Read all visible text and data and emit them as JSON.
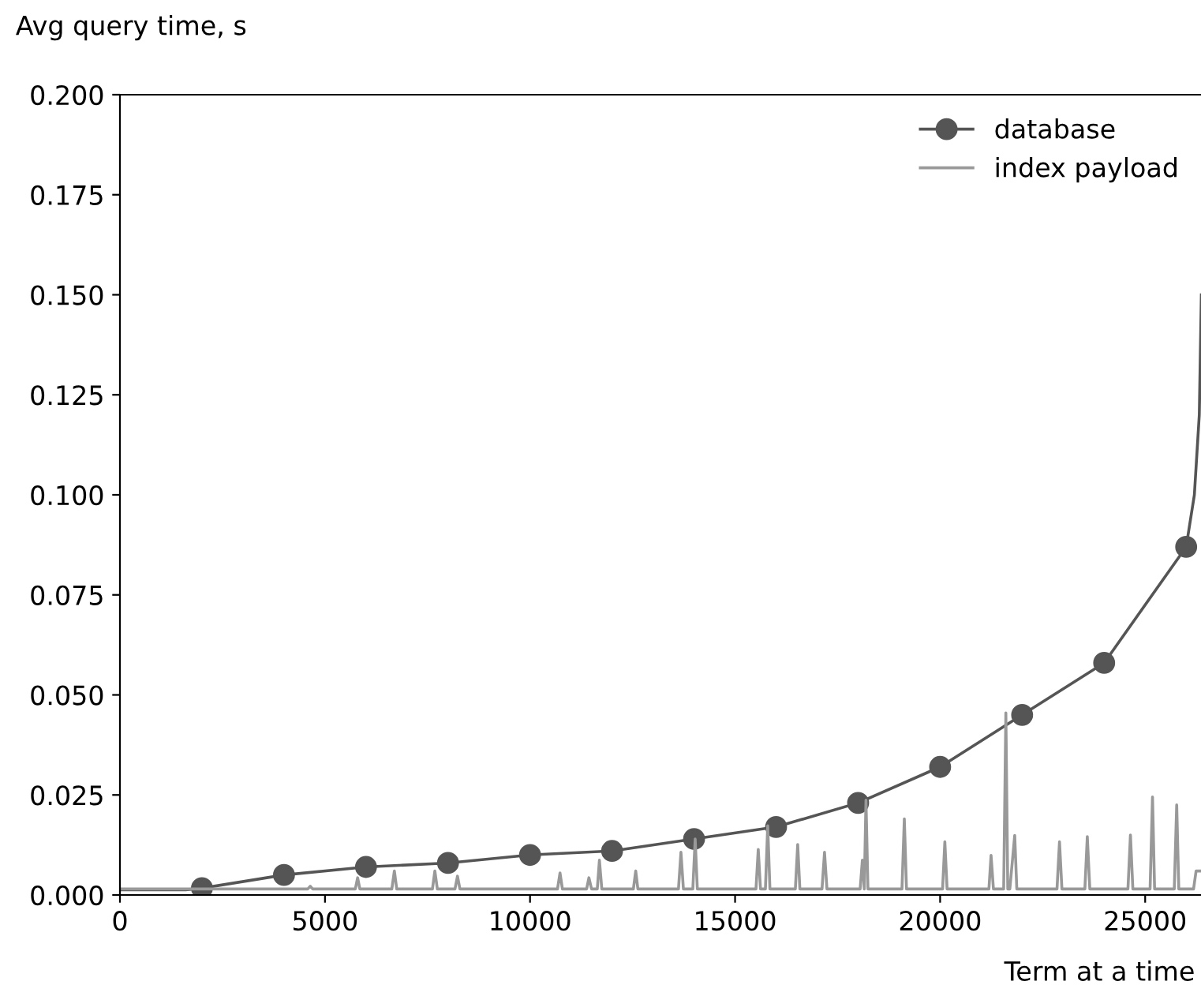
{
  "chart_data": {
    "type": "line",
    "xlabel": "Term at a time",
    "ylabel": "Avg query time, s",
    "xlim": [
      0,
      26400
    ],
    "xticks": [
      0,
      5000,
      10000,
      15000,
      20000,
      25000
    ],
    "ylim": [
      0,
      0.2
    ],
    "yticks": [
      {
        "value": 0,
        "label": "0.000"
      },
      {
        "value": 0.025,
        "label": "0.025"
      },
      {
        "value": 0.05,
        "label": "0.050"
      },
      {
        "value": 0.075,
        "label": "0.075"
      },
      {
        "value": 0.1,
        "label": "0.100"
      },
      {
        "value": 0.125,
        "label": "0.125"
      },
      {
        "value": 0.15,
        "label": "0.150"
      },
      {
        "value": 0.175,
        "label": "0.175"
      },
      {
        "value": 0.2,
        "label": "0.200"
      }
    ],
    "legend": "top right",
    "grid": false,
    "series": [
      {
        "name": "database",
        "color": "#555555",
        "marker": "circle",
        "x": [
          2000,
          4000,
          6000,
          8000,
          10000,
          12000,
          14000,
          16000,
          18000,
          20000,
          22000,
          24000,
          26000
        ],
        "values": [
          0.0017,
          0.005,
          0.007,
          0.008,
          0.01,
          0.011,
          0.014,
          0.017,
          0.023,
          0.032,
          0.045,
          0.058,
          0.087
        ]
      },
      {
        "color": "#555555",
        "marker": "none",
        "x": [
          0,
          1600,
          2000
        ],
        "values": [
          0.0013,
          0.0013,
          0.0017
        ]
      },
      {
        "color": "#555555",
        "marker": "none",
        "x": [
          26000,
          26200,
          26320,
          26370
        ],
        "values": [
          0.087,
          0.1,
          0.12,
          0.15
        ]
      },
      {
        "name": "index payload",
        "color": "#999999",
        "marker": "none",
        "x": [
          0,
          4580,
          4641,
          4700,
          5740,
          5796,
          5850,
          6630,
          6692,
          6750,
          7620,
          7679,
          7740,
          8170,
          8231,
          8290,
          10670,
          10731,
          10790,
          11380,
          11436,
          11500,
          11640,
          11692,
          11750,
          12520,
          12577,
          12630,
          13620,
          13680,
          13740,
          13970,
          14027,
          14080,
          15510,
          15565,
          15620,
          15740,
          15796,
          15850,
          16470,
          16527,
          16580,
          17120,
          17181,
          17240,
          18050,
          18104,
          18150,
          18192,
          18240,
          19070,
          19127,
          19180,
          20060,
          20115,
          20170,
          21190,
          21242,
          21300,
          21550,
          21603,
          21650,
          21700,
          21819,
          21870,
          22850,
          22911,
          22970,
          23530,
          23589,
          23650,
          24580,
          24641,
          24700,
          25120,
          25179,
          25230,
          25710,
          25769,
          25820,
          26180,
          26242,
          26400
        ],
        "values": [
          0.0015,
          0.0015,
          0.0022,
          0.0015,
          0.0015,
          0.0043,
          0.0015,
          0.0015,
          0.006,
          0.0015,
          0.0015,
          0.006,
          0.0015,
          0.0015,
          0.0047,
          0.0015,
          0.0015,
          0.0055,
          0.0015,
          0.0015,
          0.0043,
          0.0015,
          0.0015,
          0.0087,
          0.0015,
          0.0015,
          0.006,
          0.0015,
          0.0015,
          0.0107,
          0.0015,
          0.0015,
          0.014,
          0.0015,
          0.0015,
          0.0114,
          0.0015,
          0.0015,
          0.0173,
          0.0015,
          0.0015,
          0.0126,
          0.0015,
          0.0015,
          0.0107,
          0.0015,
          0.0015,
          0.0087,
          0.0015,
          0.0237,
          0.0015,
          0.0015,
          0.019,
          0.0015,
          0.0015,
          0.0133,
          0.0015,
          0.0015,
          0.0099,
          0.0015,
          0.0015,
          0.0455,
          0.0015,
          0.0015,
          0.0149,
          0.0015,
          0.0015,
          0.0133,
          0.0015,
          0.0015,
          0.0146,
          0.0015,
          0.0015,
          0.015,
          0.0015,
          0.0015,
          0.0245,
          0.0015,
          0.0015,
          0.0225,
          0.0015,
          0.0015,
          0.006,
          0.006
        ]
      }
    ]
  }
}
